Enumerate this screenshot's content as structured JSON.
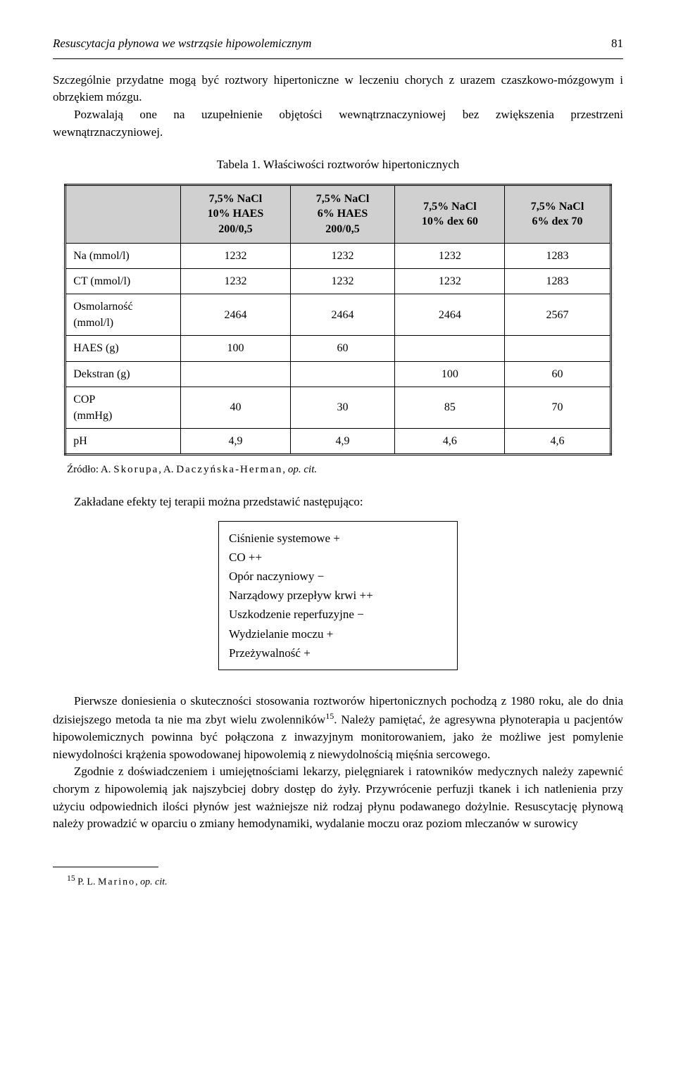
{
  "header": {
    "title": "Resuscytacja płynowa we wstrząsie hipowolemicznym",
    "page": "81"
  },
  "intro": {
    "p1": "Szczególnie przydatne mogą być roztwory hipertoniczne w leczeniu chorych z urazem czaszkowo-mózgowym i obrzękiem mózgu.",
    "p2": "Pozwalają one na uzupełnienie objętości wewnątrznaczyniowej bez zwiększenia przestrzeni wewnątrznaczyniowej."
  },
  "table": {
    "caption": "Tabela 1. Właściwości roztworów hipertonicznych",
    "columns": [
      "",
      "7,5% NaCl\n10% HAES\n200/0,5",
      "7,5% NaCl\n6% HAES\n200/0,5",
      "7,5% NaCl\n10% dex 60",
      "7,5% NaCl\n6% dex 70"
    ],
    "rows": [
      {
        "label": "Na (mmol/l)",
        "v": [
          "1232",
          "1232",
          "1232",
          "1283"
        ]
      },
      {
        "label": "CT (mmol/l)",
        "v": [
          "1232",
          "1232",
          "1232",
          "1283"
        ]
      },
      {
        "label": "Osmolarność\n(mmol/l)",
        "v": [
          "2464",
          "2464",
          "2464",
          "2567"
        ]
      },
      {
        "label": "HAES (g)",
        "v": [
          "100",
          "60",
          "",
          ""
        ]
      },
      {
        "label": "Dekstran (g)",
        "v": [
          "",
          "",
          "100",
          "60"
        ]
      },
      {
        "label": "COP\n(mmHg)",
        "v": [
          "40",
          "30",
          "85",
          "70"
        ]
      },
      {
        "label": "pH",
        "v": [
          "4,9",
          "4,9",
          "4,6",
          "4,6"
        ]
      }
    ]
  },
  "source": {
    "prefix": "Źródło: A. ",
    "author1": "Skorupa",
    "mid": ", A. ",
    "author2": "Daczyńska-Herman",
    "suffix_italic": "op. cit.",
    "comma_sep": ", "
  },
  "effects": {
    "intro": "Zakładane efekty tej terapii można przedstawić następująco:",
    "lines": [
      "Ciśnienie systemowe +",
      "CO ++",
      "Opór naczyniowy −",
      "Narządowy przepływ krwi ++",
      "Uszkodzenie reperfuzyjne −",
      "Wydzielanie moczu +",
      "Przeżywalność +"
    ]
  },
  "body": {
    "p1_a": "Pierwsze doniesienia o skuteczności stosowania roztworów hipertonicznych pochodzą z 1980 roku, ale do dnia dzisiejszego metoda ta nie ma zbyt wielu zwolenników",
    "p1_fn": "15",
    "p1_b": ". Należy pamiętać, że agresywna płynoterapia u pacjentów hipowolemicznych powinna być połączona z inwazyjnym monitorowaniem, jako że możliwe jest pomylenie niewydolności krążenia spowodowanej hipowolemią z niewydolnością mięśnia sercowego.",
    "p2": "Zgodnie z doświadczeniem i umiejętnościami lekarzy, pielęgniarek i ratowników medycznych należy zapewnić chorym z hipowolemią jak najszybciej dobry dostęp do żyły. Przywrócenie perfuzji tkanek i ich natlenienia przy użyciu odpowiednich ilości płynów jest ważniejsze niż rodzaj płynu podawanego dożylnie. Resuscytację płynową należy prowadzić w oparciu o zmiany hemodynamiki, wydalanie moczu oraz poziom mleczanów w surowicy"
  },
  "footnote": {
    "marker": "15",
    "text_a": " P. L. ",
    "author": "Marino",
    "text_b": ", ",
    "italic": "op. cit."
  }
}
